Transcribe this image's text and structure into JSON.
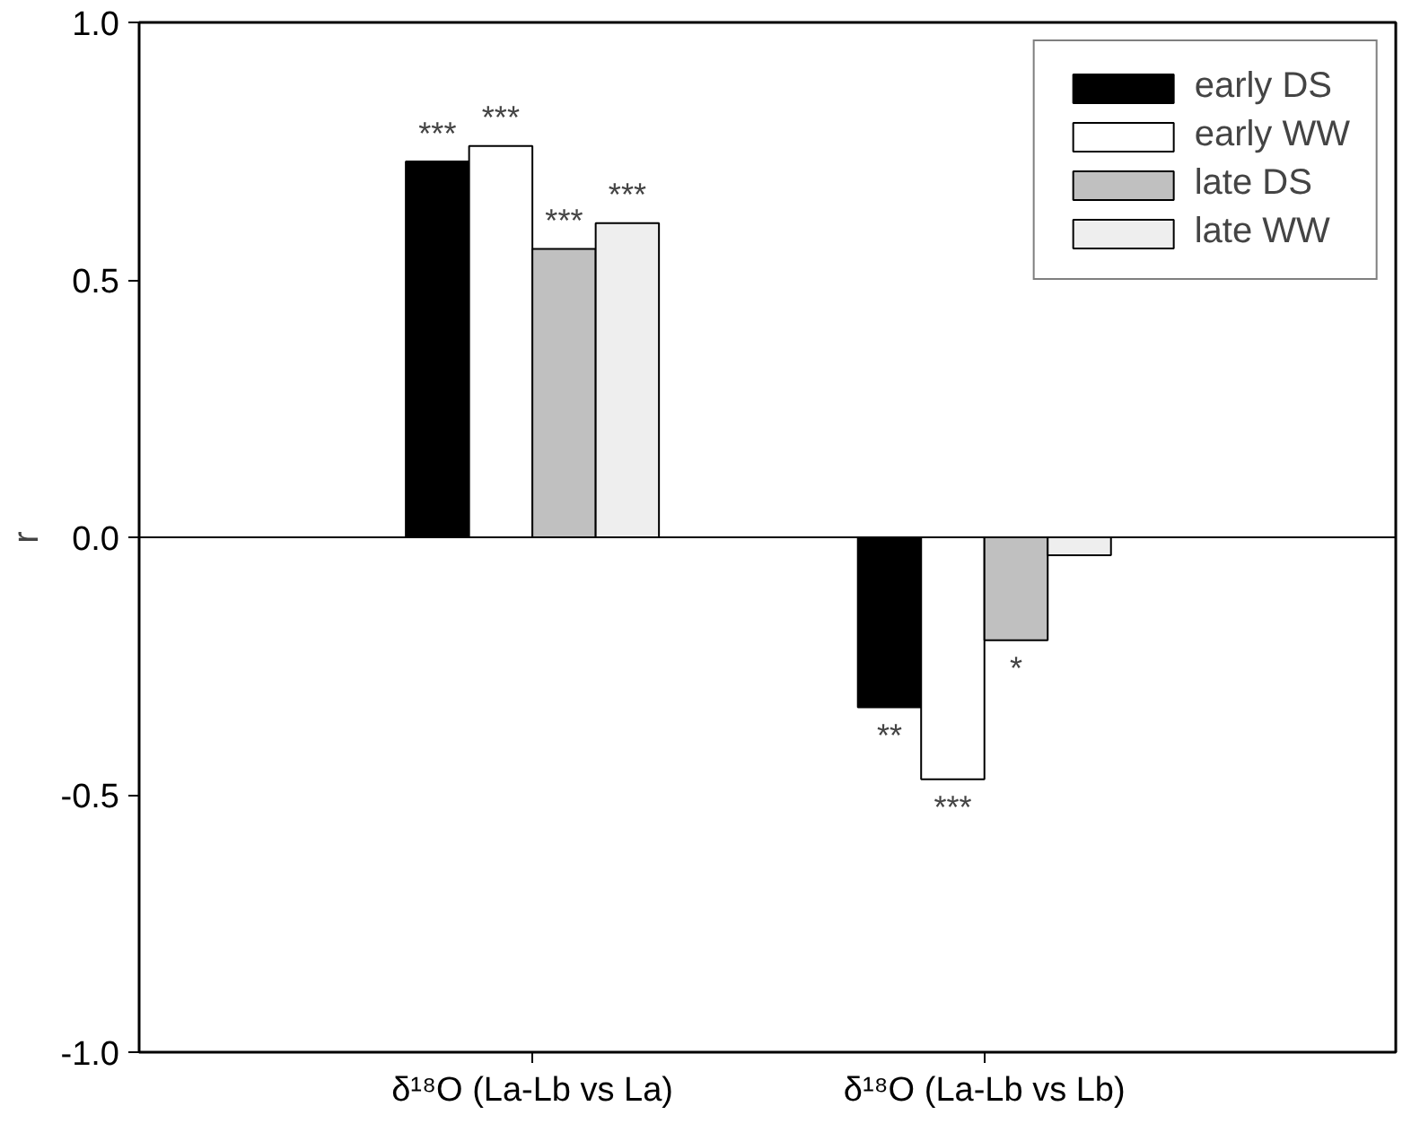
{
  "chart_data": {
    "type": "bar",
    "ylabel": "r",
    "categories": [
      "δ¹⁸O (La-Lb vs La)",
      "δ¹⁸O (La-Lb vs Lb)"
    ],
    "series": [
      {
        "name": "early DS",
        "color": "#000000",
        "values": [
          0.73,
          -0.33
        ],
        "value_labels": [
          "***",
          "**"
        ]
      },
      {
        "name": "early WW",
        "color": "#ffffff",
        "values": [
          0.76,
          -0.47
        ],
        "value_labels": [
          "***",
          "***"
        ]
      },
      {
        "name": "late DS",
        "color": "#c0c0c0",
        "values": [
          0.56,
          -0.2
        ],
        "value_labels": [
          "***",
          "*"
        ]
      },
      {
        "name": "late WW",
        "color": "#eeeeee",
        "values": [
          0.61,
          -0.035
        ],
        "value_labels": [
          "***",
          null
        ]
      }
    ],
    "ylim": [
      -1,
      1
    ],
    "yticks": [
      {
        "value": -1,
        "label": "-1.0"
      },
      {
        "value": -0.5,
        "label": "-0.5"
      },
      {
        "value": 0,
        "label": "0.0"
      },
      {
        "value": 0.5,
        "label": "0.5"
      },
      {
        "value": 1,
        "label": "1.0"
      }
    ],
    "ref_lines": [
      {
        "axis": "y",
        "value": 0,
        "color": "#000000"
      }
    ],
    "grid": false,
    "legend": "top right"
  }
}
